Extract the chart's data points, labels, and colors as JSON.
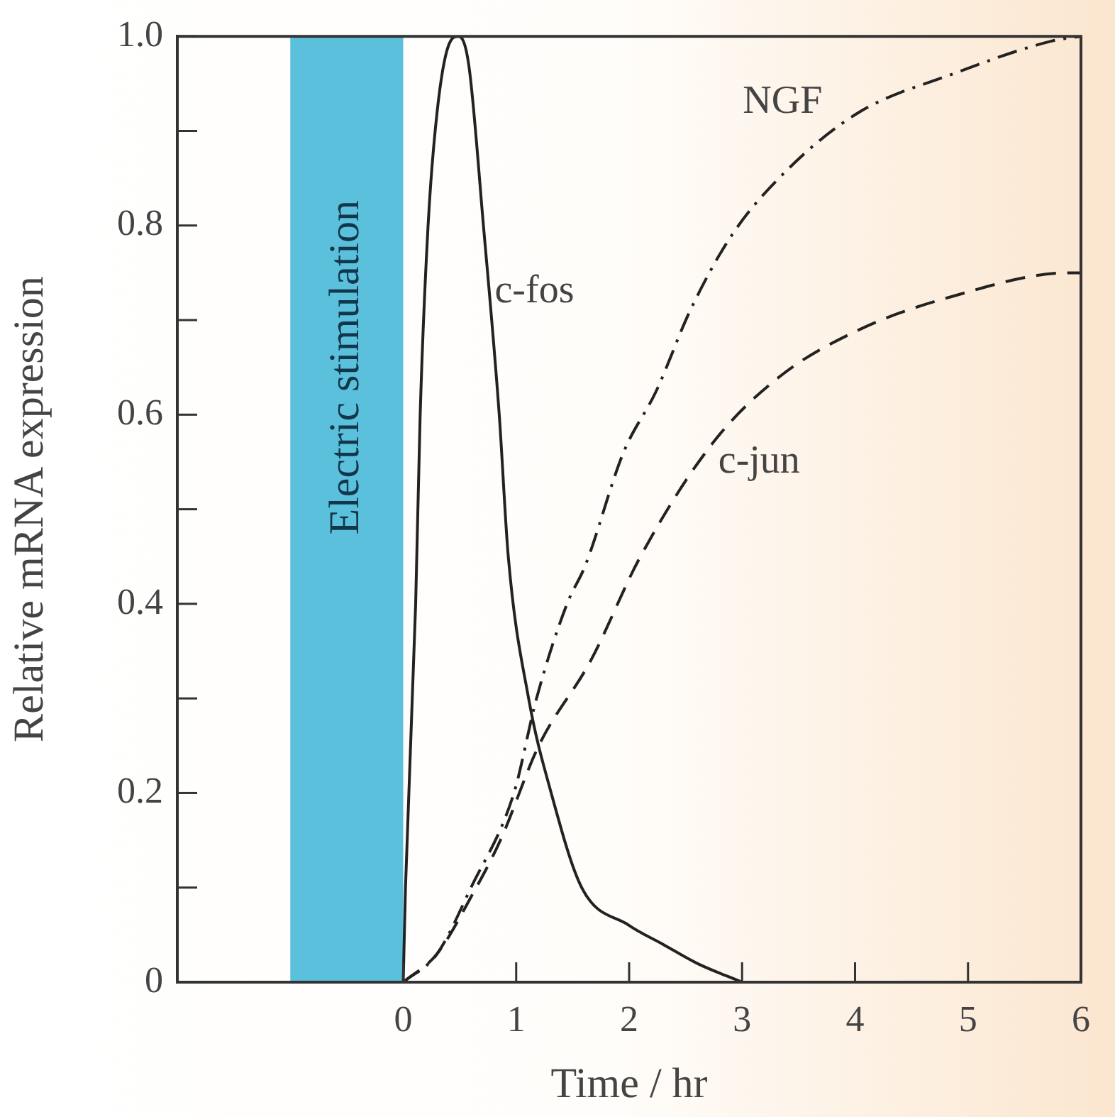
{
  "chart_data": {
    "type": "line",
    "xlabel": "Time / hr",
    "ylabel": "Relative mRNA expression",
    "xlim": [
      -2,
      6
    ],
    "xticks": [
      0,
      1,
      2,
      3,
      4,
      5,
      6
    ],
    "ylim": [
      0,
      1
    ],
    "yticks": [
      0,
      {
        "value": 0.1,
        "label": null
      },
      0.2,
      {
        "value": 0.3,
        "label": null
      },
      0.4,
      {
        "value": 0.5,
        "label": null
      },
      0.6,
      {
        "value": 0.7,
        "label": null
      },
      0.8,
      {
        "value": 0.9,
        "label": null
      },
      {
        "value": 1,
        "label": "1.0"
      }
    ],
    "grid": false,
    "legend": false,
    "marker": "none",
    "bands": [
      {
        "axis": "x",
        "from": -1,
        "to": 0,
        "label": "Electric stimulation",
        "color": "#5bc0dc"
      }
    ],
    "series": [
      {
        "name": "c-fos",
        "color": "#222222",
        "line_style": "solid",
        "x": [
          0,
          0.02,
          0.11,
          0.15,
          0.22,
          0.3,
          0.4,
          0.49,
          0.58,
          0.71,
          0.85,
          0.93,
          1.11,
          1.31,
          1.58,
          2,
          2.3,
          2.6,
          3
        ],
        "values": [
          0,
          0.1,
          0.4,
          0.6,
          0.8,
          0.92,
          0.99,
          1,
          0.97,
          0.8,
          0.6,
          0.45,
          0.3,
          0.2,
          0.1,
          0.06,
          0.04,
          0.02,
          0
        ]
      },
      {
        "name": "NGF",
        "color": "#222222",
        "line_style": "dashdot",
        "x": [
          0,
          0.3,
          0.6,
          0.98,
          1.18,
          1.45,
          1.61,
          1.95,
          2.24,
          2.54,
          2.91,
          3.41,
          4.04,
          4.86,
          5.74,
          6
        ],
        "values": [
          0,
          0.03,
          0.1,
          0.2,
          0.3,
          0.4,
          0.44,
          0.56,
          0.625,
          0.71,
          0.79,
          0.86,
          0.92,
          0.96,
          0.995,
          1
        ]
      },
      {
        "name": "c-jun",
        "color": "#222222",
        "line_style": "dashed",
        "x": [
          0,
          0.3,
          0.6,
          0.86,
          1.2,
          1.66,
          2.1,
          2.74,
          3.33,
          4.04,
          4.86,
          5.9,
          6
        ],
        "values": [
          0,
          0.03,
          0.09,
          0.15,
          0.25,
          0.34,
          0.45,
          0.57,
          0.64,
          0.69,
          0.725,
          0.75,
          0.75
        ]
      }
    ]
  }
}
